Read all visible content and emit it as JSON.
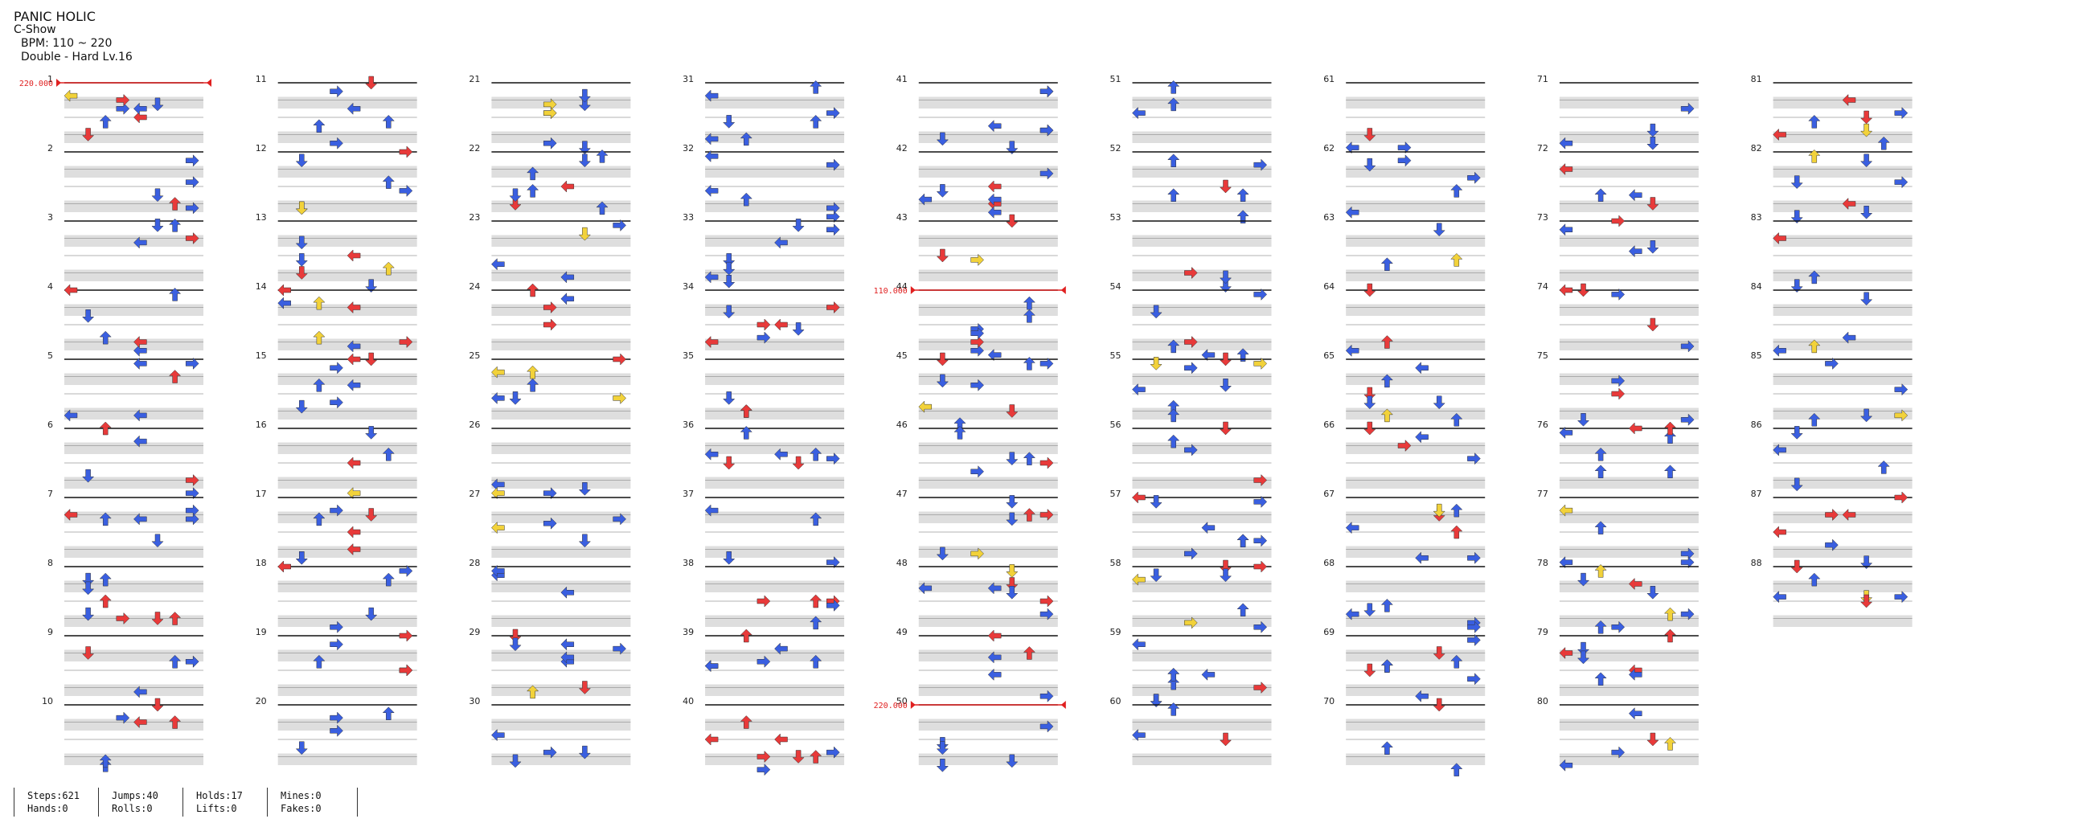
{
  "header": {
    "title": "PANIC HOLIC",
    "artist": "C-Show",
    "bpm": "BPM: 110 ~ 220",
    "difficulty": "Double - Hard Lv.16"
  },
  "bpm_markers": [
    {
      "measure": 1,
      "label": "220.000"
    },
    {
      "measure": 44,
      "label": "110.000"
    },
    {
      "measure": 50,
      "label": "220.000"
    }
  ],
  "measure_count": 88,
  "measures_per_column": 10,
  "stats": {
    "steps": "Steps:621",
    "hands": "Hands:0",
    "jumps": "Jumps:40",
    "rolls": "Rolls:0",
    "holds": "Holds:17",
    "lifts": "Lifts:0",
    "mines": "Mines:0",
    "fakes": "Fakes:0"
  },
  "colors": {
    "quarter": "#e83a3a",
    "eighth": "#3a5fe0",
    "sixteenth": "#f2d23a",
    "twelfth": "#f08a2a",
    "hold": "#8fe08a",
    "bpm_line": "#e02020",
    "band": "#dedede",
    "measure_line": "#111111",
    "beat_line": "#9a9a9a"
  },
  "icons": [
    "arrow-left-icon",
    "arrow-down-icon",
    "arrow-up-icon",
    "arrow-right-icon"
  ]
}
